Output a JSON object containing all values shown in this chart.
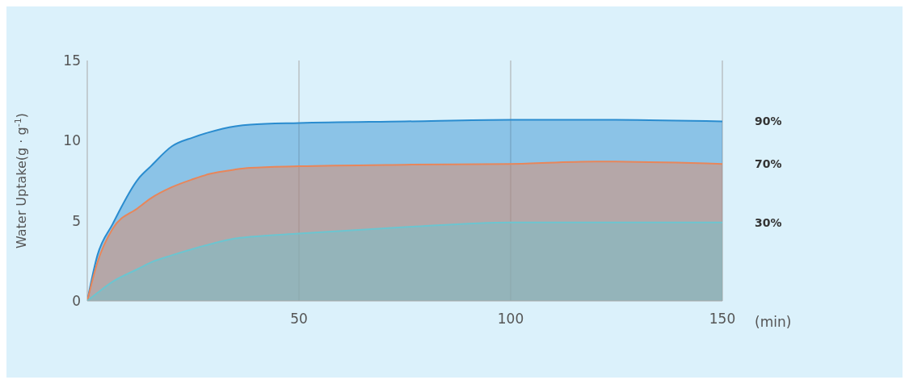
{
  "chart_data": {
    "type": "area",
    "ylabel": "Water Uptake(g · g$^{-1}$)",
    "xlabel": "(min)",
    "x": [
      0,
      2.4,
      6,
      12,
      15,
      20,
      25,
      28.5,
      35,
      38.5,
      50,
      75,
      100,
      120,
      150
    ],
    "series": [
      {
        "name": "90%",
        "color": "#2a8ccf",
        "values": [
          0,
          2.85,
          4.8,
          7.6,
          8.4,
          9.65,
          10.2,
          10.5,
          10.9,
          11.0,
          11.1,
          11.2,
          11.3,
          11.3,
          11.2
        ]
      },
      {
        "name": "70%",
        "color": "#e8865a",
        "values": [
          0,
          2.4,
          4.5,
          5.8,
          6.4,
          7.1,
          7.6,
          7.9,
          8.2,
          8.3,
          8.4,
          8.5,
          8.55,
          8.7,
          8.55
        ]
      },
      {
        "name": "30%",
        "color": "#6cc5d0",
        "values": [
          0,
          0.5,
          1.2,
          2.0,
          2.4,
          2.85,
          3.25,
          3.5,
          3.9,
          4.0,
          4.2,
          4.6,
          4.9,
          4.9,
          4.9
        ]
      }
    ],
    "xlim": [
      0,
      150
    ],
    "xticks": [
      {
        "value": 0,
        "label": null
      },
      50,
      100,
      150
    ],
    "ylim": [
      0,
      15
    ],
    "yticks": [
      0,
      5,
      10,
      15
    ],
    "grid": "x",
    "legend": false
  }
}
